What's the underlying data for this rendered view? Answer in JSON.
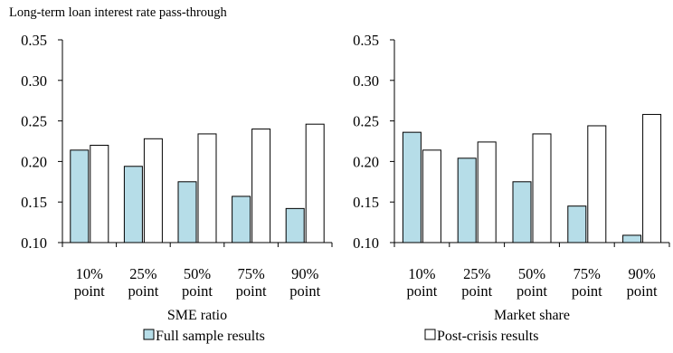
{
  "chart_data": [
    {
      "type": "bar",
      "title": "Long-term loan interest rate pass-through",
      "xlabel": "SME ratio",
      "ylabel": "",
      "ylim": [
        0.1,
        0.35
      ],
      "yticks": [
        "0.10",
        "0.15",
        "0.20",
        "0.25",
        "0.30",
        "0.35"
      ],
      "categories": [
        [
          "10%",
          "point"
        ],
        [
          "25%",
          "point"
        ],
        [
          "50%",
          "point"
        ],
        [
          "75%",
          "point"
        ],
        [
          "90%",
          "point"
        ]
      ],
      "series": [
        {
          "name": "Full sample results",
          "color": "#b6dde8",
          "values": [
            0.214,
            0.194,
            0.175,
            0.157,
            0.142
          ]
        },
        {
          "name": "Post-crisis results",
          "color": "#ffffff",
          "values": [
            0.22,
            0.228,
            0.234,
            0.24,
            0.246
          ]
        }
      ]
    },
    {
      "type": "bar",
      "title": "",
      "xlabel": "Market share",
      "ylabel": "",
      "ylim": [
        0.1,
        0.35
      ],
      "yticks": [
        "0.10",
        "0.15",
        "0.20",
        "0.25",
        "0.30",
        "0.35"
      ],
      "categories": [
        [
          "10%",
          "point"
        ],
        [
          "25%",
          "point"
        ],
        [
          "50%",
          "point"
        ],
        [
          "75%",
          "point"
        ],
        [
          "90%",
          "point"
        ]
      ],
      "series": [
        {
          "name": "Full sample results",
          "color": "#b6dde8",
          "values": [
            0.236,
            0.204,
            0.175,
            0.145,
            0.109
          ]
        },
        {
          "name": "Post-crisis results",
          "color": "#ffffff",
          "values": [
            0.214,
            0.224,
            0.234,
            0.244,
            0.258
          ]
        }
      ]
    }
  ],
  "legend": [
    {
      "label": "Full sample results",
      "color": "#b6dde8"
    },
    {
      "label": "Post-crisis results",
      "color": "#ffffff"
    }
  ]
}
